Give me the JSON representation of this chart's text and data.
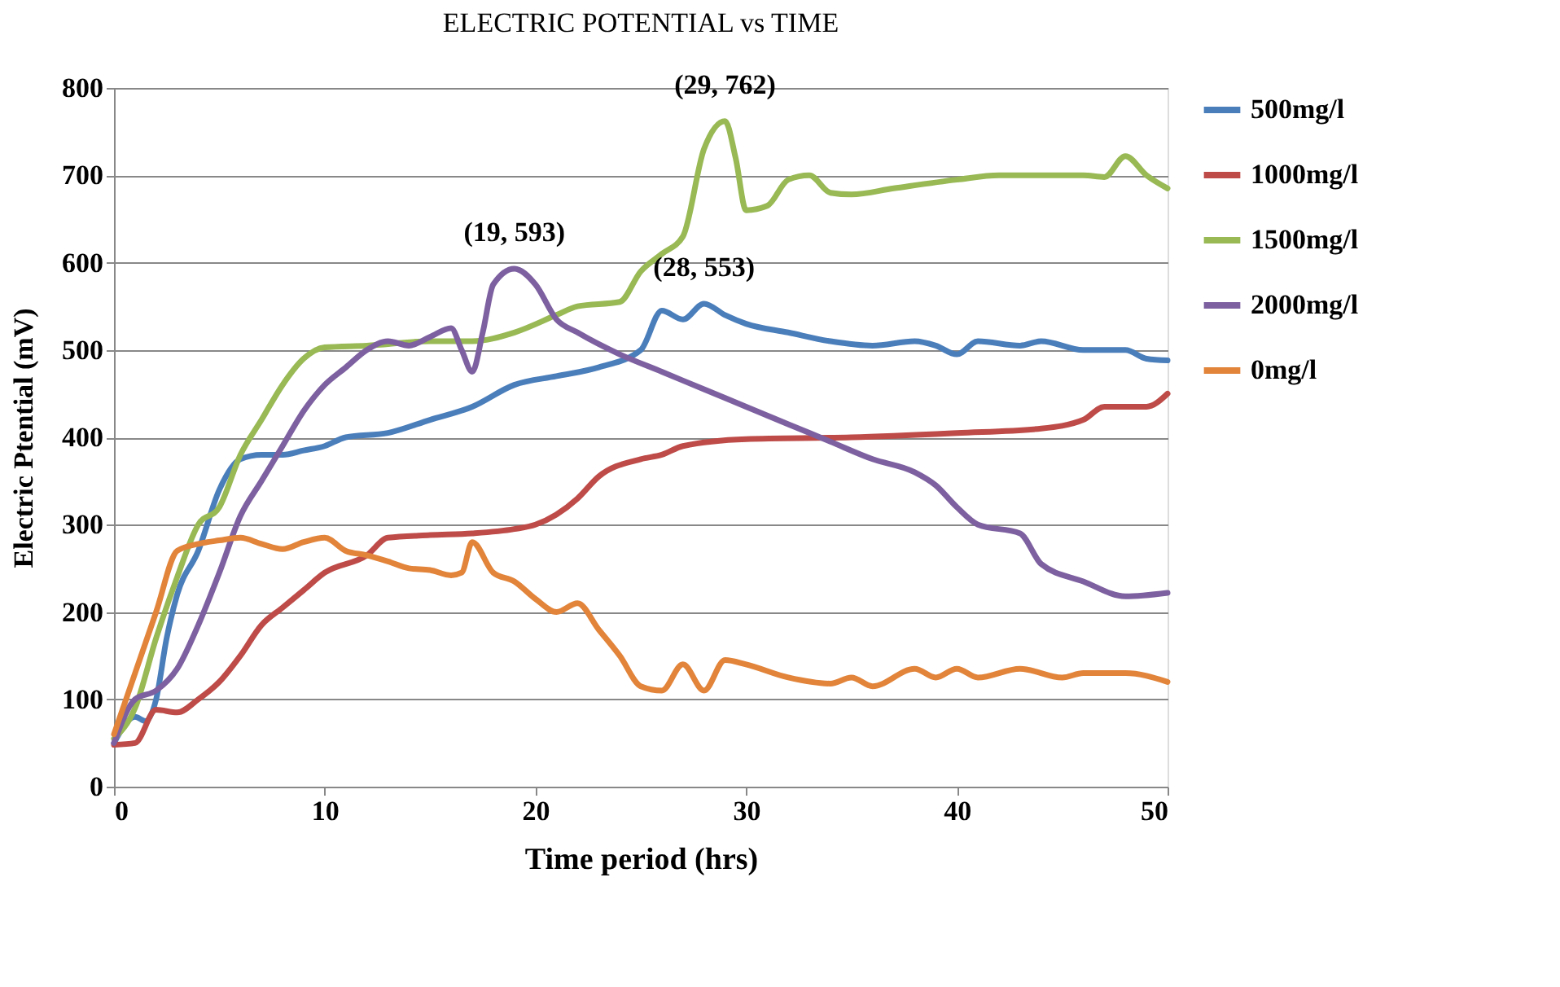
{
  "chart_data": {
    "type": "line",
    "title": "ELECTRIC POTENTIAL vs TIME",
    "xlabel": "Time period (hrs)",
    "ylabel": "Electric Ptential (mV)",
    "xlim": [
      0,
      50
    ],
    "xticks": [
      0,
      10,
      20,
      30,
      40,
      50
    ],
    "ylim": [
      0,
      800
    ],
    "yticks": [
      0,
      100,
      200,
      300,
      400,
      500,
      600,
      700,
      800
    ],
    "grid": "y",
    "legend": "right",
    "marker": "none",
    "line_style": "solid",
    "annotations": [
      {
        "text": "(19, 593)",
        "x": 19,
        "y": 593
      },
      {
        "text": "(29, 762)",
        "x": 29,
        "y": 762
      },
      {
        "text": "(28, 553)",
        "x": 28,
        "y": 553
      }
    ],
    "series": [
      {
        "name": "500mg/l",
        "color": "#4a7ebb",
        "x": [
          0,
          1,
          1.5,
          2,
          2.5,
          3,
          4,
          5,
          6,
          7,
          8,
          9,
          10,
          11,
          13,
          15,
          17,
          19,
          21,
          23,
          25,
          26,
          27,
          28,
          29,
          30,
          32,
          34,
          36,
          38,
          39,
          40,
          41,
          43,
          44,
          46,
          48,
          49,
          50
        ],
        "values": [
          50,
          80,
          75,
          100,
          170,
          220,
          270,
          340,
          375,
          380,
          380,
          385,
          390,
          400,
          405,
          420,
          435,
          460,
          470,
          480,
          500,
          545,
          535,
          553,
          540,
          530,
          520,
          510,
          505,
          510,
          505,
          495,
          510,
          505,
          510,
          500,
          500,
          490,
          488
        ]
      },
      {
        "name": "1000mg/l",
        "color": "#be4b48",
        "x": [
          0,
          1,
          2,
          3,
          4,
          5,
          6,
          7,
          8,
          9,
          10,
          12,
          13,
          15,
          17,
          19,
          20,
          22,
          23,
          25,
          26,
          27,
          30,
          35,
          40,
          44,
          46,
          47,
          49,
          50
        ],
        "values": [
          48,
          50,
          88,
          85,
          100,
          120,
          150,
          185,
          205,
          225,
          245,
          265,
          285,
          288,
          290,
          295,
          300,
          330,
          355,
          375,
          380,
          390,
          398,
          400,
          405,
          410,
          420,
          435,
          435,
          450
        ]
      },
      {
        "name": "1500mg/l",
        "color": "#98b954",
        "x": [
          0,
          1,
          2,
          3,
          4,
          5,
          6,
          7,
          8,
          9,
          10,
          12,
          15,
          17,
          19,
          21,
          22,
          24,
          25,
          26,
          27,
          28,
          29,
          29.5,
          30,
          31,
          32,
          33,
          34,
          35,
          37,
          40,
          42,
          44,
          46,
          47,
          48,
          49,
          50
        ],
        "values": [
          55,
          90,
          170,
          240,
          300,
          320,
          380,
          420,
          460,
          490,
          503,
          505,
          510,
          510,
          520,
          540,
          550,
          555,
          590,
          610,
          630,
          730,
          762,
          720,
          660,
          665,
          695,
          700,
          680,
          678,
          685,
          695,
          700,
          700,
          700,
          698,
          722,
          700,
          685
        ]
      },
      {
        "name": "2000mg/l",
        "color": "#7d60a0",
        "x": [
          0,
          1,
          2,
          3,
          4,
          5,
          6,
          7,
          8,
          9,
          10,
          11,
          12,
          13,
          14,
          15,
          16,
          16.5,
          17,
          17.5,
          18,
          19,
          20,
          21,
          22,
          24,
          26,
          28,
          30,
          32,
          34,
          36,
          38,
          39,
          40,
          41,
          43,
          44,
          46,
          48,
          50
        ],
        "values": [
          50,
          100,
          110,
          135,
          185,
          245,
          310,
          350,
          390,
          430,
          460,
          480,
          500,
          510,
          505,
          515,
          525,
          500,
          475,
          520,
          575,
          593,
          575,
          535,
          520,
          495,
          475,
          455,
          435,
          415,
          395,
          375,
          360,
          345,
          320,
          300,
          290,
          255,
          235,
          218,
          222
        ]
      },
      {
        "name": "0mg/l",
        "color": "#e2843a",
        "x": [
          0,
          1,
          2,
          3,
          4,
          5,
          6,
          7,
          8,
          9,
          10,
          11,
          12,
          13,
          14,
          15,
          16,
          16.5,
          17,
          18,
          19,
          20,
          21,
          22,
          23,
          24,
          25,
          26,
          27,
          28,
          29,
          30,
          32,
          34,
          35,
          36,
          38,
          39,
          40,
          41,
          43,
          45,
          46,
          48,
          50
        ],
        "values": [
          60,
          130,
          200,
          270,
          278,
          282,
          285,
          278,
          272,
          280,
          285,
          270,
          265,
          258,
          250,
          248,
          242,
          245,
          280,
          245,
          235,
          215,
          200,
          210,
          180,
          150,
          115,
          110,
          140,
          110,
          145,
          140,
          125,
          118,
          125,
          115,
          135,
          125,
          135,
          125,
          135,
          125,
          130,
          130,
          120
        ]
      }
    ]
  }
}
